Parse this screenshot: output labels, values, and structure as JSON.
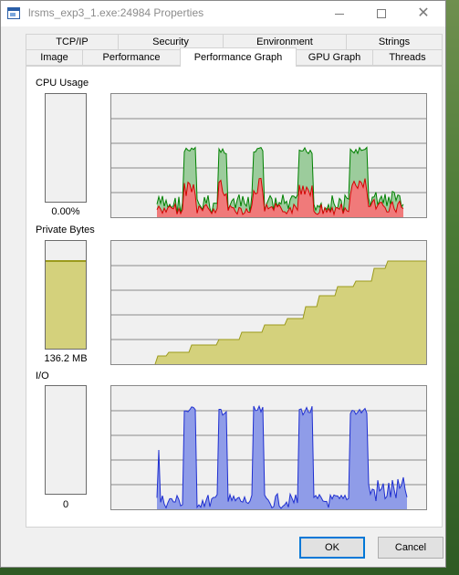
{
  "window": {
    "title": "lrsms_exp3_1.exe:24984 Properties",
    "controls": {
      "minimize": "minimize-icon",
      "maximize": "maximize-icon",
      "close": "close-icon"
    }
  },
  "tabs": {
    "row_back": [
      "TCP/IP",
      "Security",
      "Environment",
      "Strings"
    ],
    "row_front": [
      "Image",
      "Performance",
      "Performance Graph",
      "GPU Graph",
      "Threads"
    ],
    "active": "Performance Graph"
  },
  "sections": [
    {
      "label": "CPU Usage",
      "value": "0.00%",
      "meter_fill_fraction": 0.0
    },
    {
      "label": "Private Bytes",
      "value": "136.2 MB",
      "meter_fill_fraction": 0.82
    },
    {
      "label": "I/O",
      "value": "0",
      "meter_fill_fraction": 0.0
    }
  ],
  "colors": {
    "cpu_kernel_fill": "#f07a7a",
    "cpu_kernel_line": "#d40000",
    "cpu_total_fill": "#9ccc9c",
    "cpu_total_line": "#008000",
    "bytes_fill": "#d4d17c",
    "bytes_line": "#9b9a1c",
    "io_fill": "#8f9ce8",
    "io_line": "#1f2fd0",
    "default_button_border": "#0078d7"
  },
  "buttons": {
    "ok": "OK",
    "cancel": "Cancel"
  }
}
